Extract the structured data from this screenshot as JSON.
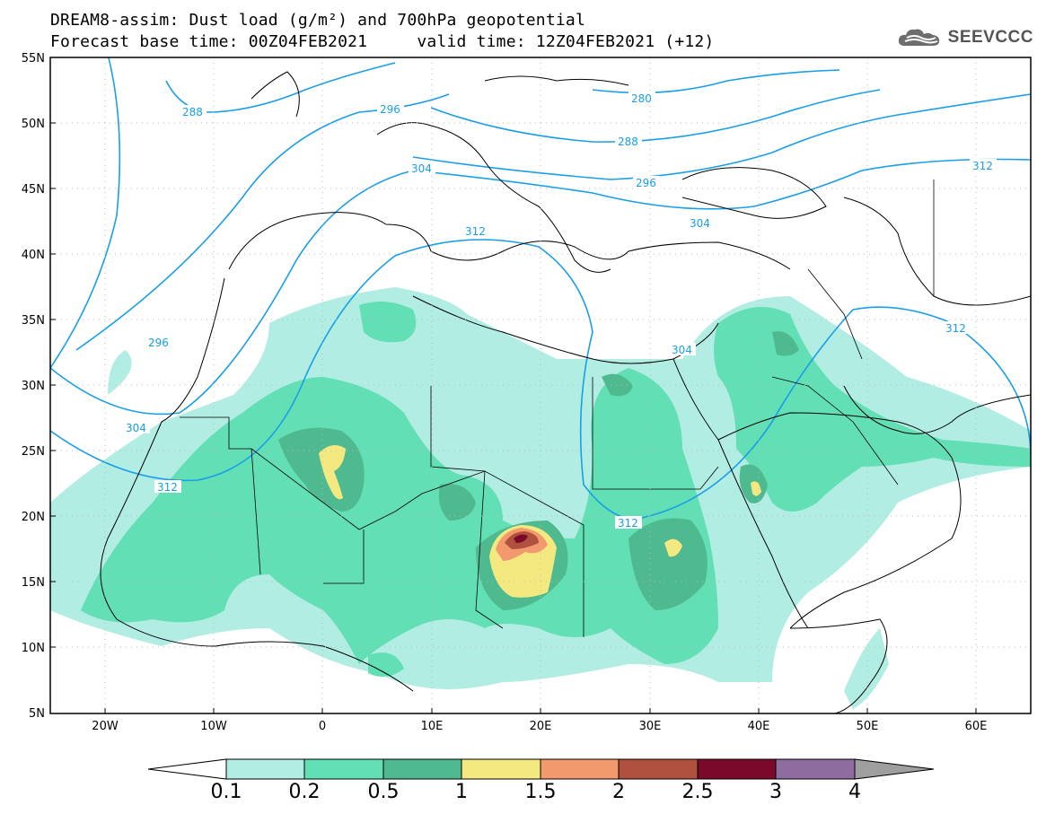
{
  "title_line1": "DREAM8-assim: Dust load (g/m²) and 700hPa geopotential",
  "title_line2": "Forecast base time: 00Z04FEB2021     valid time: 12Z04FEB2021 (+12)",
  "brand": "SEEVCCC",
  "axes": {
    "lat_labels": [
      "55N",
      "50N",
      "45N",
      "40N",
      "35N",
      "30N",
      "25N",
      "20N",
      "15N",
      "10N",
      "5N"
    ],
    "lon_labels": [
      "20W",
      "10W",
      "0",
      "10E",
      "20E",
      "30E",
      "40E",
      "50E",
      "60E"
    ]
  },
  "contours": {
    "labels": [
      "288",
      "296",
      "304",
      "312",
      "280",
      "288",
      "296",
      "304",
      "312",
      "304",
      "312",
      "296",
      "304",
      "312"
    ]
  },
  "colorbar": {
    "ticks": [
      "0.1",
      "0.2",
      "0.5",
      "1",
      "1.5",
      "2",
      "2.5",
      "3",
      "4"
    ],
    "colors": [
      "#ffffff",
      "#b2ede3",
      "#62dfb4",
      "#4fb98f",
      "#f4e881",
      "#f29a6d",
      "#b0503e",
      "#7b0a2a",
      "#8e6ca0",
      "#9f9f9f"
    ]
  }
}
